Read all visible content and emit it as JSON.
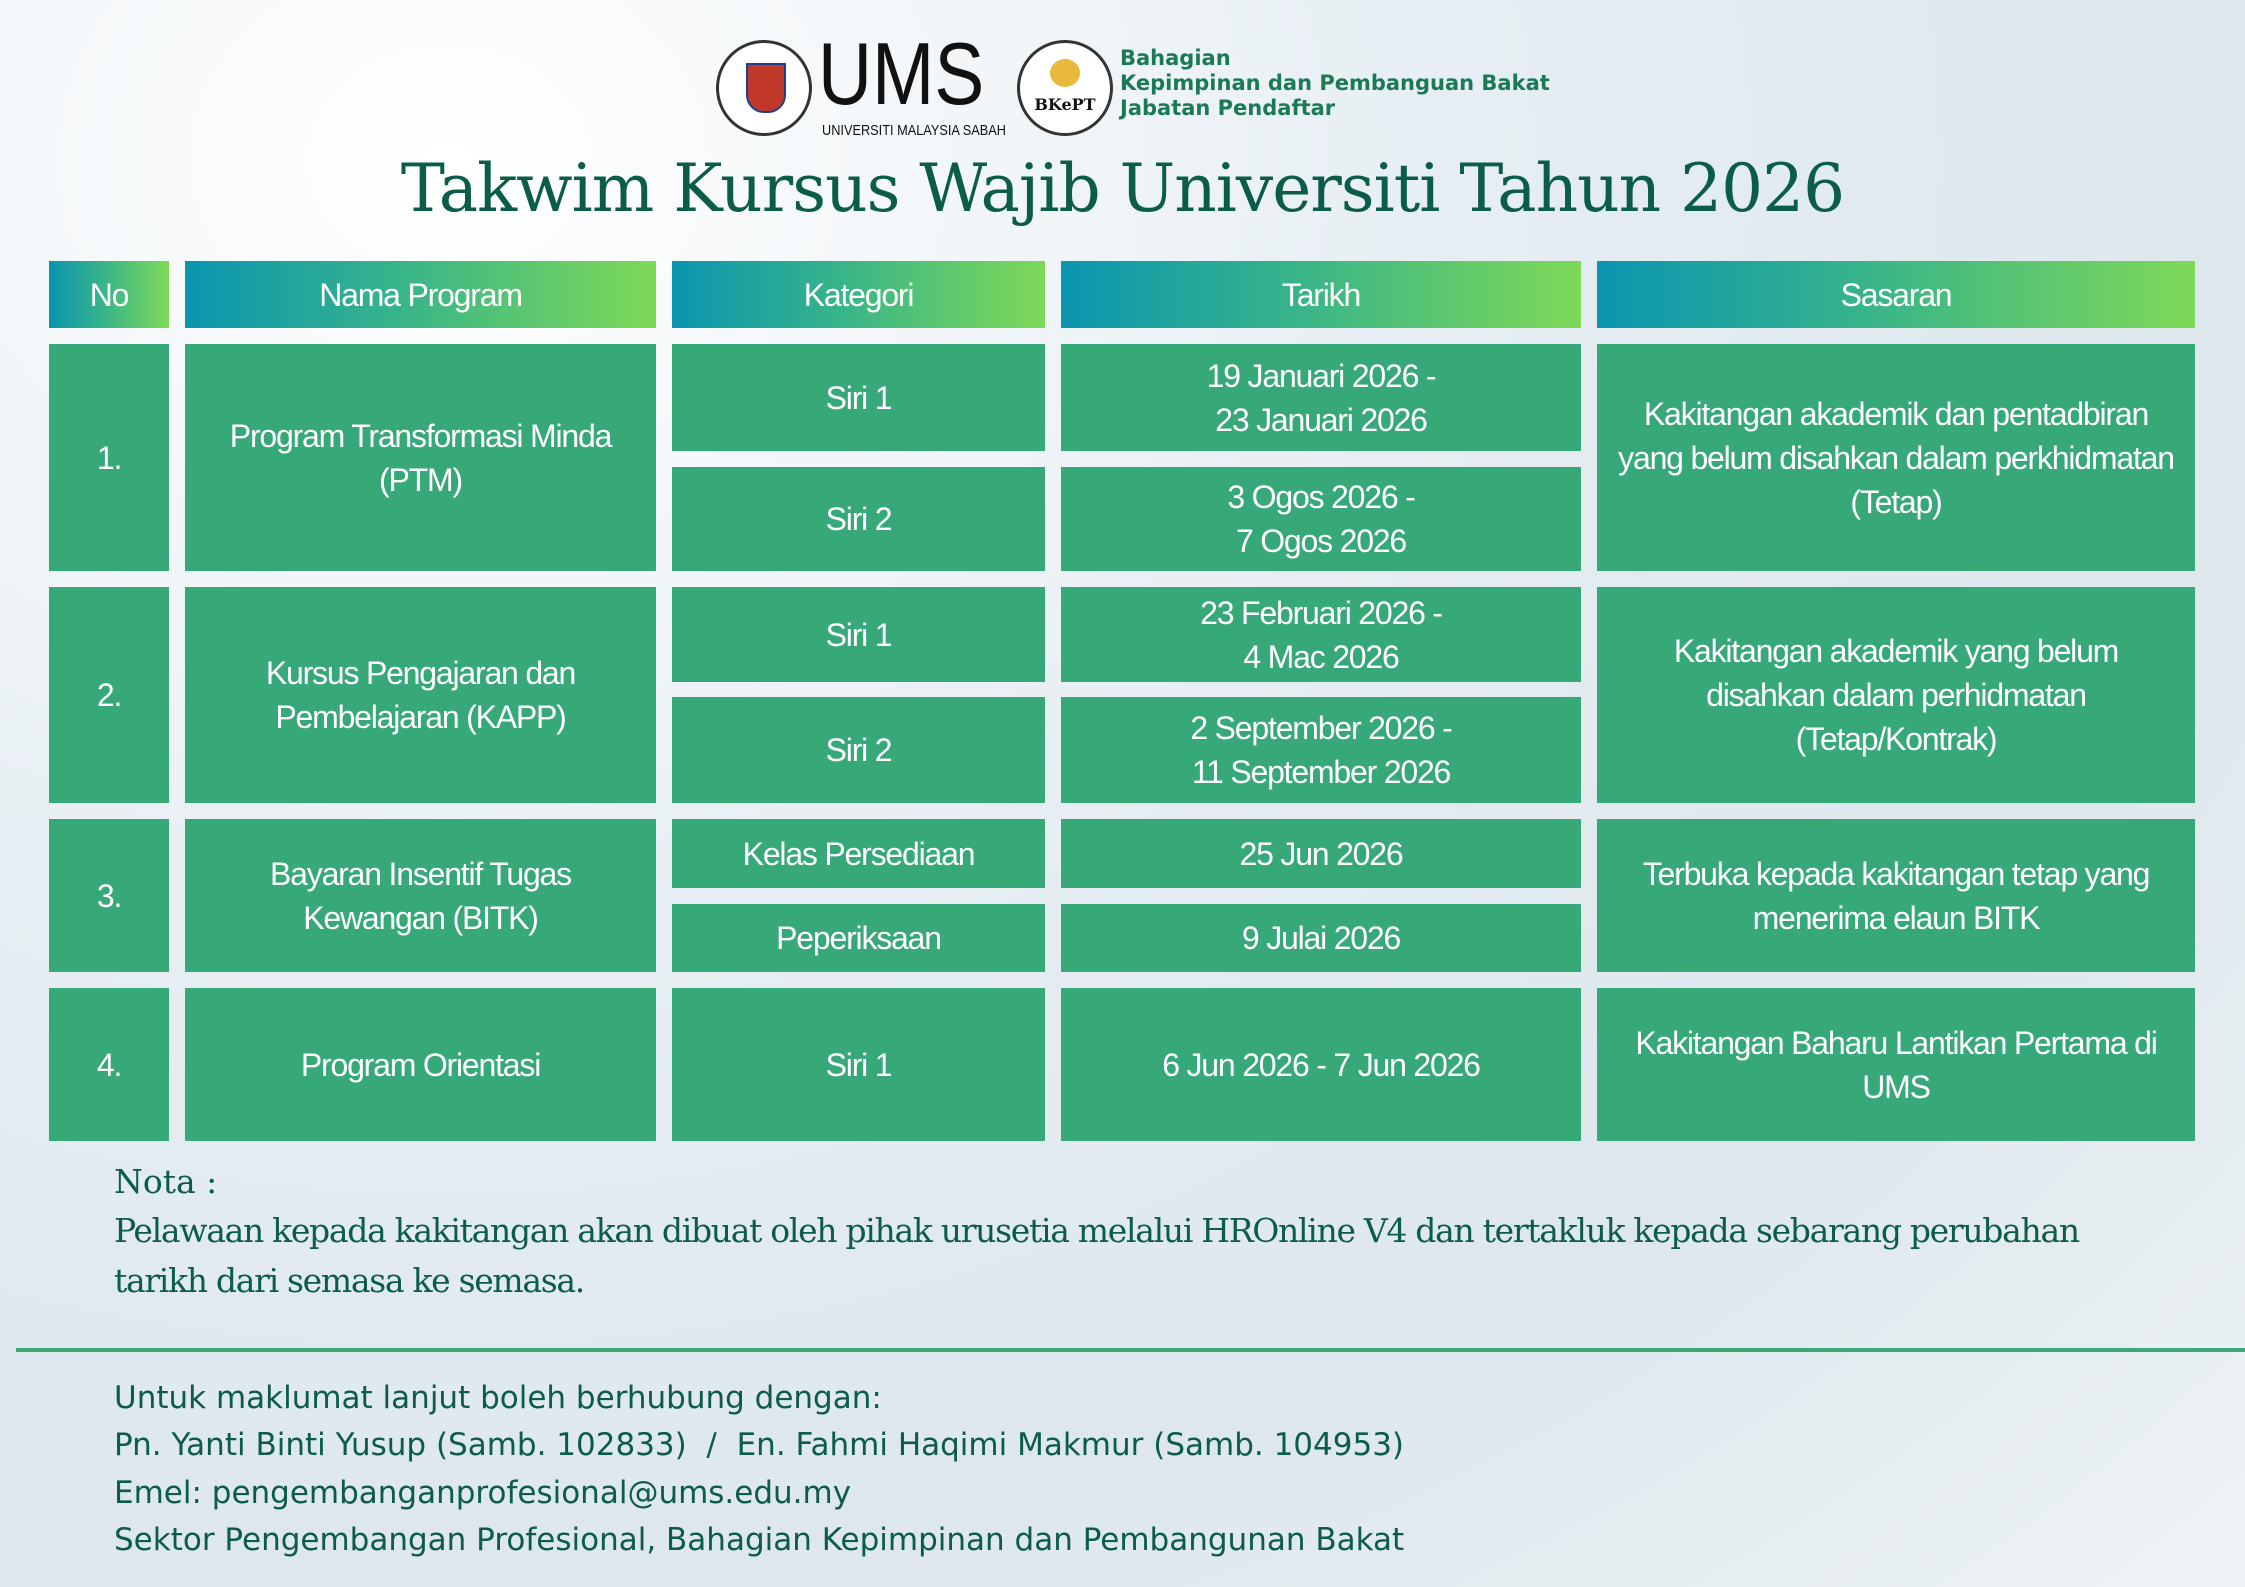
{
  "header": {
    "logo_ums": "UMS",
    "logo_ums_sub": "UNIVERSITI MALAYSIA SABAH",
    "logo_bkept": "BKePT",
    "org_lines": [
      "Bahagian",
      "Kepimpinan dan Pembanguan Bakat",
      "Jabatan Pendaftar"
    ],
    "title": "Takwim Kursus Wajib Universiti Tahun 2026"
  },
  "table": {
    "columns": [
      "No",
      "Nama Program",
      "Kategori",
      "Tarikh",
      "Sasaran"
    ],
    "rows": [
      {
        "no": "1.",
        "program": "Program Transformasi Minda\n(PTM)",
        "sessions": [
          {
            "kategori": "Siri 1",
            "tarikh": "19 Januari 2026 -\n23 Januari 2026"
          },
          {
            "kategori": "Siri 2",
            "tarikh": "3 Ogos 2026 -\n7 Ogos 2026"
          }
        ],
        "sasaran": "Kakitangan akademik dan pentadbiran\nyang belum disahkan dalam perkhidmatan\n(Tetap)"
      },
      {
        "no": "2.",
        "program": "Kursus Pengajaran dan\nPembelajaran (KAPP)",
        "sessions": [
          {
            "kategori": "Siri 1",
            "tarikh": "23 Februari 2026 -\n4 Mac 2026"
          },
          {
            "kategori": "Siri 2",
            "tarikh": "2 September 2026 -\n11 September 2026"
          }
        ],
        "sasaran": "Kakitangan akademik yang belum\ndisahkan dalam perhidmatan\n(Tetap/Kontrak)"
      },
      {
        "no": "3.",
        "program": "Bayaran Insentif Tugas\nKewangan (BITK)",
        "sessions": [
          {
            "kategori": "Kelas Persediaan",
            "tarikh": "25 Jun 2026"
          },
          {
            "kategori": "Peperiksaan",
            "tarikh": "9 Julai 2026"
          }
        ],
        "sasaran": "Terbuka kepada kakitangan tetap yang\nmenerima elaun BITK"
      },
      {
        "no": "4.",
        "program": "Program Orientasi",
        "sessions": [
          {
            "kategori": "Siri 1",
            "tarikh": "6 Jun 2026 - 7 Jun 2026"
          }
        ],
        "sasaran": "Kakitangan Baharu Lantikan Pertama di\nUMS"
      }
    ]
  },
  "note": {
    "label": "Nota :",
    "lines": [
      "Pelawaan kepada kakitangan akan dibuat oleh pihak urusetia melalui HROnline V4 dan tertakluk kepada sebarang perubahan",
      "tarikh dari semasa ke semasa."
    ]
  },
  "contact": {
    "lines": [
      "Untuk maklumat lanjut boleh berhubung dengan:",
      "Pn. Yanti Binti Yusup (Samb. 102833)  /  En. Fahmi Haqimi Makmur (Samb. 104953)",
      "Emel: pengembanganprofesional@ums.edu.my",
      "Sektor Pengembangan Profesional, Bahagian Kepimpinan dan Pembangunan Bakat"
    ]
  },
  "colors": {
    "cell": "#37a878",
    "header_from": "#0a95b0",
    "header_to": "#7ed957",
    "text_dark": "#0b5c48"
  }
}
